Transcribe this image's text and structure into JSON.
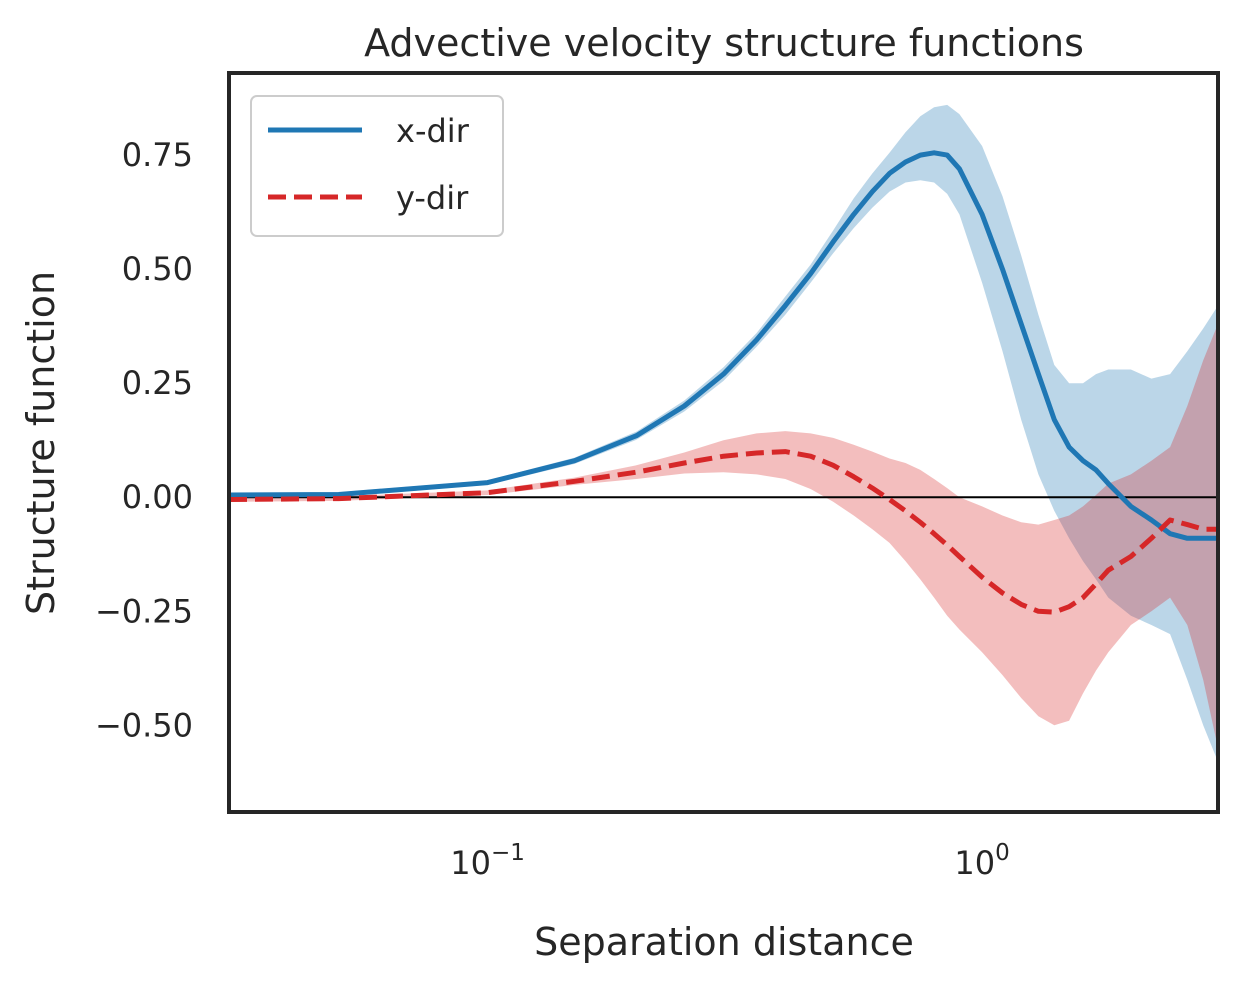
{
  "chart_data": {
    "type": "line",
    "title": "Advective velocity structure functions",
    "xlabel": "Separation distance",
    "ylabel": "Structure function",
    "xscale": "log",
    "xlim": [
      0.03,
      3.0
    ],
    "ylim": [
      -0.69,
      0.93
    ],
    "yticks": [
      {
        "value": 0.75,
        "label": "0.75"
      },
      {
        "value": 0.5,
        "label": "0.50"
      },
      {
        "value": 0.25,
        "label": "0.25"
      },
      {
        "value": 0.0,
        "label": "0.00"
      },
      {
        "value": -0.25,
        "label": "−0.25"
      },
      {
        "value": -0.5,
        "label": "−0.50"
      }
    ],
    "xticks": [
      {
        "value": 0.1,
        "base": "10",
        "exp": "−1"
      },
      {
        "value": 1.0,
        "base": "10",
        "exp": "0"
      }
    ],
    "hline": 0.0,
    "legend": {
      "location": "upper-left"
    },
    "series": [
      {
        "name": "x-dir",
        "color": "#1f77b4",
        "style": "solid",
        "x": [
          0.03,
          0.05,
          0.1,
          0.15,
          0.2,
          0.25,
          0.3,
          0.35,
          0.4,
          0.45,
          0.5,
          0.55,
          0.6,
          0.65,
          0.7,
          0.75,
          0.8,
          0.85,
          0.9,
          1.0,
          1.1,
          1.2,
          1.3,
          1.4,
          1.5,
          1.6,
          1.7,
          1.8,
          2.0,
          2.2,
          2.4,
          2.6,
          2.8,
          3.0
        ],
        "y": [
          0.005,
          0.006,
          0.032,
          0.08,
          0.135,
          0.2,
          0.27,
          0.345,
          0.42,
          0.49,
          0.56,
          0.62,
          0.67,
          0.71,
          0.735,
          0.75,
          0.755,
          0.75,
          0.72,
          0.62,
          0.5,
          0.38,
          0.27,
          0.17,
          0.11,
          0.08,
          0.06,
          0.03,
          -0.02,
          -0.05,
          -0.08,
          -0.09,
          -0.09,
          -0.09
        ],
        "lower": [
          0.0,
          0.001,
          0.027,
          0.073,
          0.126,
          0.188,
          0.255,
          0.33,
          0.4,
          0.47,
          0.535,
          0.59,
          0.635,
          0.67,
          0.69,
          0.695,
          0.69,
          0.665,
          0.62,
          0.47,
          0.32,
          0.17,
          0.05,
          -0.03,
          -0.09,
          -0.14,
          -0.18,
          -0.22,
          -0.26,
          -0.28,
          -0.3,
          -0.4,
          -0.5,
          -0.58
        ],
        "upper": [
          0.01,
          0.011,
          0.037,
          0.087,
          0.144,
          0.212,
          0.285,
          0.36,
          0.44,
          0.51,
          0.585,
          0.655,
          0.71,
          0.755,
          0.8,
          0.835,
          0.855,
          0.86,
          0.84,
          0.77,
          0.66,
          0.53,
          0.4,
          0.29,
          0.25,
          0.25,
          0.27,
          0.28,
          0.28,
          0.26,
          0.27,
          0.32,
          0.37,
          0.42
        ]
      },
      {
        "name": "y-dir",
        "color": "#d62728",
        "style": "dashed",
        "x": [
          0.03,
          0.05,
          0.1,
          0.15,
          0.2,
          0.25,
          0.3,
          0.35,
          0.4,
          0.45,
          0.5,
          0.55,
          0.6,
          0.65,
          0.7,
          0.75,
          0.8,
          0.85,
          0.9,
          1.0,
          1.1,
          1.2,
          1.3,
          1.4,
          1.5,
          1.6,
          1.7,
          1.8,
          2.0,
          2.2,
          2.4,
          2.6,
          2.8,
          3.0
        ],
        "y": [
          -0.005,
          -0.003,
          0.01,
          0.035,
          0.055,
          0.075,
          0.09,
          0.097,
          0.1,
          0.09,
          0.07,
          0.045,
          0.02,
          -0.005,
          -0.03,
          -0.055,
          -0.08,
          -0.105,
          -0.13,
          -0.175,
          -0.21,
          -0.235,
          -0.25,
          -0.252,
          -0.24,
          -0.22,
          -0.19,
          -0.16,
          -0.13,
          -0.09,
          -0.05,
          -0.06,
          -0.07,
          -0.07
        ],
        "lower": [
          -0.01,
          -0.008,
          0.005,
          0.027,
          0.04,
          0.052,
          0.055,
          0.05,
          0.04,
          0.018,
          -0.01,
          -0.04,
          -0.07,
          -0.1,
          -0.14,
          -0.18,
          -0.22,
          -0.26,
          -0.29,
          -0.34,
          -0.39,
          -0.44,
          -0.48,
          -0.5,
          -0.49,
          -0.43,
          -0.38,
          -0.34,
          -0.28,
          -0.25,
          -0.22,
          -0.28,
          -0.4,
          -0.55
        ],
        "upper": [
          0.0,
          0.002,
          0.015,
          0.043,
          0.07,
          0.098,
          0.125,
          0.14,
          0.145,
          0.14,
          0.13,
          0.115,
          0.1,
          0.085,
          0.075,
          0.06,
          0.04,
          0.02,
          0.0,
          -0.02,
          -0.04,
          -0.055,
          -0.06,
          -0.05,
          -0.04,
          -0.02,
          0.005,
          0.03,
          0.05,
          0.08,
          0.11,
          0.2,
          0.3,
          0.38
        ]
      }
    ]
  }
}
